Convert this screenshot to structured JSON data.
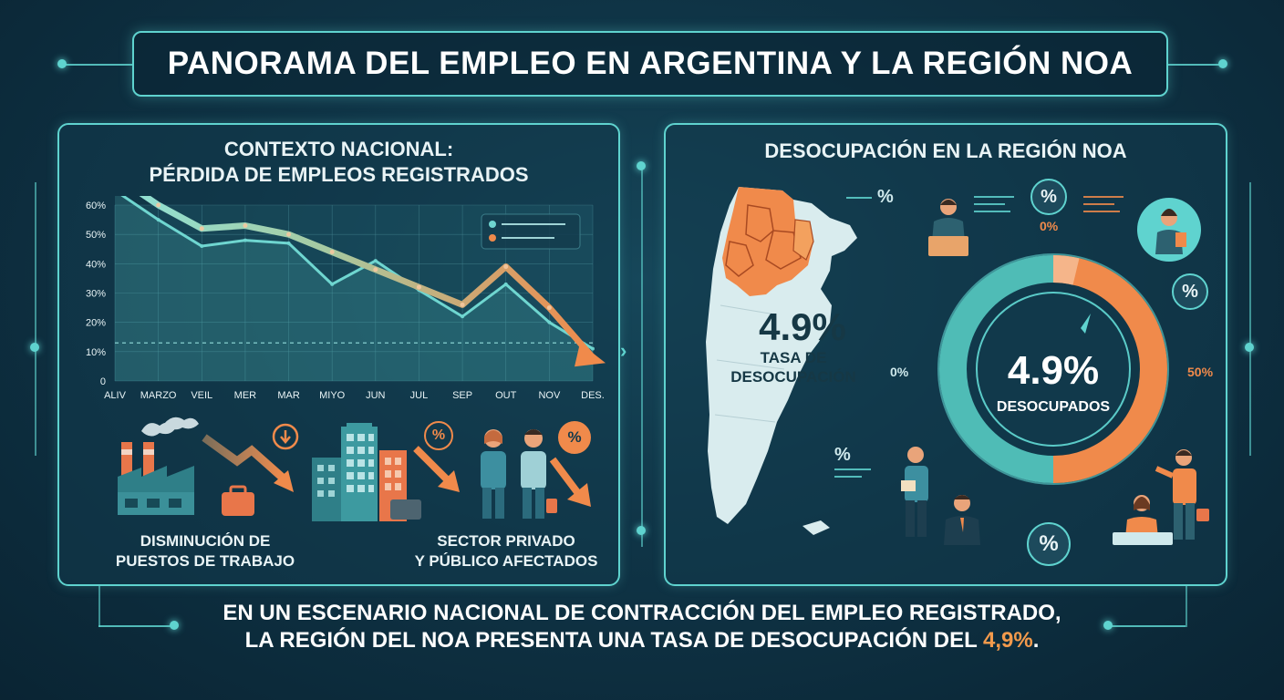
{
  "title": "PANORAMA DEL EMPLEO EN ARGENTINA Y LA REGIÓN NOA",
  "left_panel": {
    "heading_line1": "CONTEXTO NACIONAL:",
    "heading_line2": "PÉRDIDA DE EMPLEOS REGISTRADOS",
    "caption1_line1": "DISMINUCIÓN DE",
    "caption1_line2": "PUESTOS DE TRABAJO",
    "caption2_line1": "SECTOR PRIVADO",
    "caption2_line2": "Y PÚBLICO AFECTADOS",
    "icon_badges": [
      "%",
      "%"
    ]
  },
  "right_panel": {
    "heading": "DESOCUPACIÓN EN LA REGIÓN NOA",
    "map_value": "4.9%",
    "map_label_line1": "TASA DE",
    "map_label_line2": "DESOCUPACIÓN",
    "gauge_value": "4.9%",
    "gauge_label": "DESOCUPADOS",
    "gauge_min_label": "0%",
    "gauge_max_label": "50%",
    "gauge_top_label": "0%",
    "pct_labels": [
      "%",
      "%",
      "%",
      "%",
      "%"
    ]
  },
  "bottom": {
    "line1": "EN UN ESCENARIO NACIONAL DE CONTRACCIÓN DEL EMPLEO REGISTRADO,",
    "line2_prefix": "LA REGIÓN DEL NOA PRESENTA UNA TASA DE DESOCUPACIÓN DEL ",
    "line2_value": "4,9%",
    "line2_suffix": "."
  },
  "colors": {
    "accent_teal": "#5fd3cf",
    "accent_orange": "#f39a4c",
    "background": "#0f3446"
  },
  "chart_data": {
    "type": "line",
    "categories": [
      "ALIV",
      "MARZO",
      "VEIL",
      "MER",
      "MAR",
      "MIYO",
      "JUN",
      "JUL",
      "SEP",
      "OUT",
      "NOV",
      "DES."
    ],
    "ytick_labels": [
      "0",
      "10%",
      "20%",
      "30%",
      "40%",
      "50%",
      "60%"
    ],
    "ylim": [
      0,
      60
    ],
    "series": [
      {
        "values": [
          65,
          55,
          46,
          48,
          47,
          33,
          41,
          31,
          22,
          33,
          20,
          11
        ]
      },
      {
        "values": [
          70,
          60,
          52,
          53,
          50,
          44,
          38,
          32,
          26,
          39,
          25,
          8
        ]
      }
    ],
    "reference_line": 13,
    "grid": true,
    "legend": "top-right",
    "title": "",
    "xlabel": "",
    "ylabel": ""
  }
}
